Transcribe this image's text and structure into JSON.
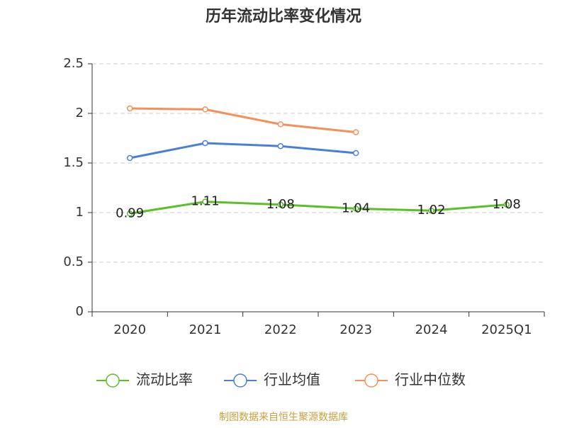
{
  "chart_data": {
    "type": "line",
    "title": "历年流动比率变化情况",
    "categories": [
      "2020",
      "2021",
      "2022",
      "2023",
      "2024",
      "2025Q1"
    ],
    "series": [
      {
        "name": "流动比率",
        "color": "#5cbf2a",
        "values": [
          0.99,
          1.11,
          1.08,
          1.04,
          1.02,
          1.08
        ],
        "show_labels": true
      },
      {
        "name": "行业均值",
        "color": "#4a7fd8",
        "values": [
          1.55,
          1.7,
          1.67,
          1.6,
          null,
          null
        ]
      },
      {
        "name": "行业中位数",
        "color": "#f4915a",
        "values": [
          2.05,
          2.04,
          1.89,
          1.81,
          null,
          null
        ]
      }
    ],
    "ylim": [
      0,
      2.5
    ],
    "yticks": [
      0,
      0.5,
      1,
      1.5,
      2,
      2.5
    ],
    "grid": true,
    "legend": "bottom",
    "source": "制图数据来自恒生聚源数据库"
  }
}
